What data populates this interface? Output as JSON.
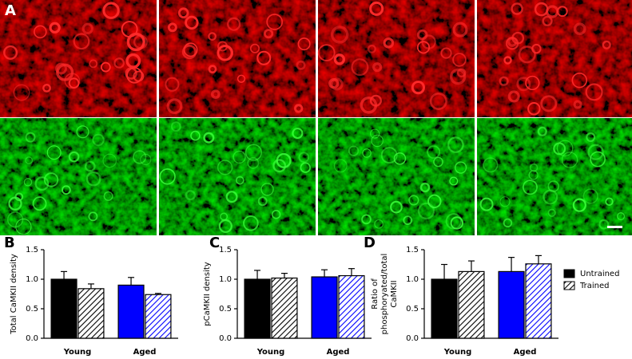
{
  "figure_label": "A",
  "chart_data": [
    {
      "type": "bar",
      "panel_label": "B",
      "ylabel": "Total CaMKII density",
      "categories": [
        "Young",
        "Aged"
      ],
      "series": [
        {
          "colors": [
            "#000000",
            "#0000ff"
          ],
          "hatch": false,
          "values": [
            1.0,
            0.9
          ],
          "errors": [
            0.13,
            0.13
          ]
        },
        {
          "colors": [
            "#000000",
            "#0000ff"
          ],
          "hatch": true,
          "values": [
            0.84,
            0.74
          ],
          "errors": [
            0.08,
            0.02
          ]
        }
      ],
      "ylim": [
        0,
        1.5
      ],
      "yticks": [
        {
          "value": 0,
          "label": "0.0"
        },
        0.5,
        {
          "value": 1,
          "label": "1.0"
        },
        1.5
      ]
    },
    {
      "type": "bar",
      "panel_label": "C",
      "ylabel": "pCaMKII density",
      "categories": [
        "Young",
        "Aged"
      ],
      "series": [
        {
          "colors": [
            "#000000",
            "#0000ff"
          ],
          "hatch": false,
          "values": [
            1.0,
            1.04
          ],
          "errors": [
            0.15,
            0.12
          ]
        },
        {
          "colors": [
            "#000000",
            "#0000ff"
          ],
          "hatch": true,
          "values": [
            1.02,
            1.06
          ],
          "errors": [
            0.08,
            0.12
          ]
        }
      ],
      "ylim": [
        0,
        1.5
      ],
      "yticks": [
        {
          "value": 0,
          "label": "0.0"
        },
        0.5,
        {
          "value": 1,
          "label": "1.0"
        },
        1.5
      ]
    },
    {
      "type": "bar",
      "panel_label": "D",
      "ylabel": [
        "Ratio of",
        "phosphoryated/total",
        "CaMKII"
      ],
      "categories": [
        "Young",
        "Aged"
      ],
      "series": [
        {
          "name": "Untrained",
          "colors": [
            "#000000",
            "#0000ff"
          ],
          "hatch": false,
          "values": [
            1.0,
            1.13
          ],
          "errors": [
            0.25,
            0.24
          ]
        },
        {
          "name": "Trained",
          "colors": [
            "#000000",
            "#0000ff"
          ],
          "hatch": true,
          "values": [
            1.13,
            1.26
          ],
          "errors": [
            0.18,
            0.14
          ]
        }
      ],
      "ylim": [
        0,
        1.5
      ],
      "yticks": [
        {
          "value": 0,
          "label": "0.0"
        },
        0.5,
        {
          "value": 1,
          "label": "1.0"
        },
        1.5
      ],
      "legend": "right"
    }
  ]
}
